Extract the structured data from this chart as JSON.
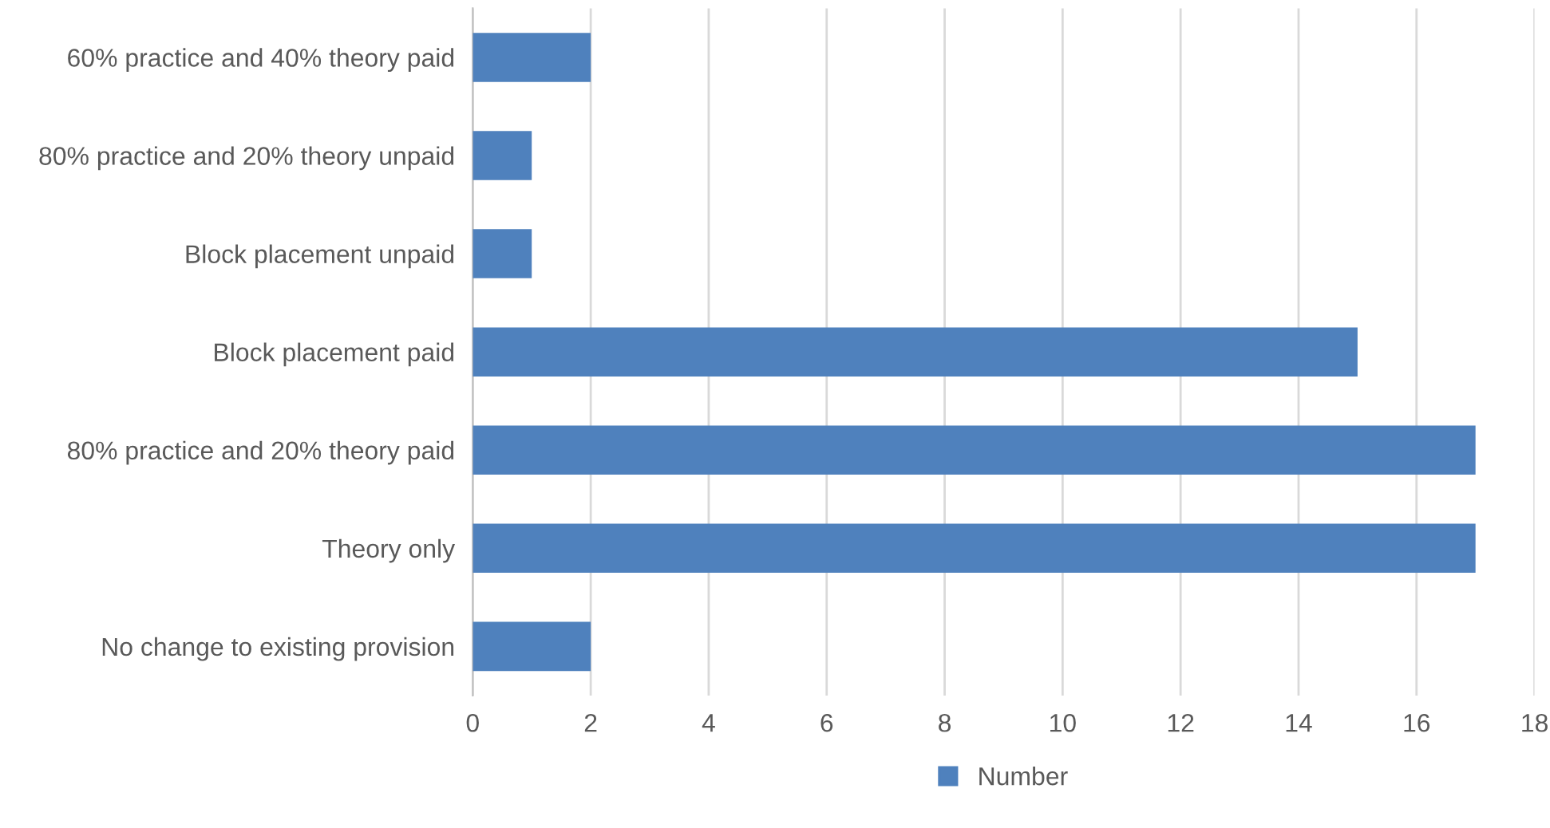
{
  "chart_data": {
    "type": "bar",
    "orientation": "horizontal",
    "categories": [
      "60% practice and 40% theory paid",
      "80% practice and 20% theory unpaid",
      "Block placement unpaid",
      "Block placement paid",
      "80% practice and 20% theory paid",
      "Theory only",
      "No change to existing provision"
    ],
    "series": [
      {
        "name": "Number",
        "color": "#4f81bd",
        "values": [
          2,
          1,
          1,
          15,
          17,
          17,
          2
        ]
      }
    ],
    "xlim": [
      0,
      18
    ],
    "xticks": [
      0,
      2,
      4,
      6,
      8,
      10,
      12,
      14,
      16,
      18
    ],
    "grid": "x",
    "legend": "bottom"
  }
}
